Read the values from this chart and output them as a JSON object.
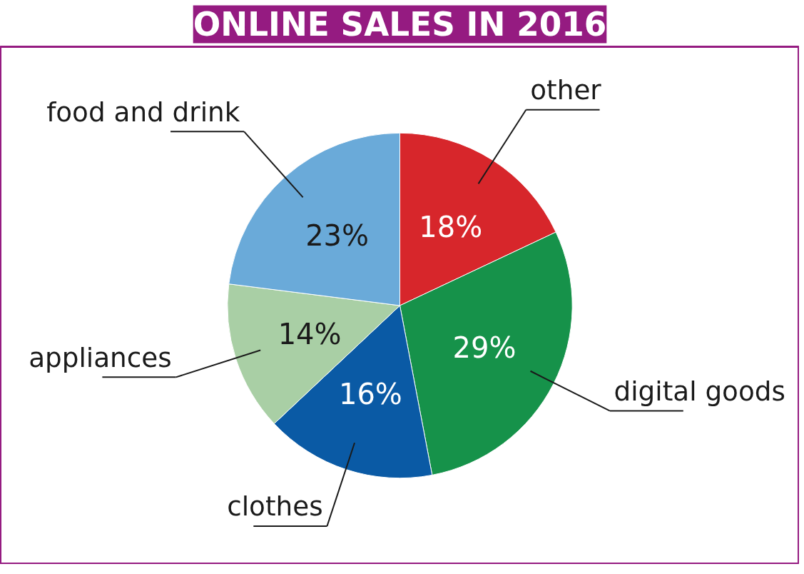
{
  "chart_data": {
    "type": "pie",
    "title": "ONLINE SALES IN 2016",
    "categories": [
      "other",
      "digital goods",
      "clothes",
      "appliances",
      "food and drink"
    ],
    "values": [
      18,
      29,
      16,
      14,
      23
    ],
    "value_labels": [
      "18%",
      "29%",
      "16%",
      "14%",
      "23%"
    ],
    "colors": [
      "#d7262b",
      "#16924a",
      "#0a5aa5",
      "#a9cfa5",
      "#6aaad9"
    ]
  }
}
